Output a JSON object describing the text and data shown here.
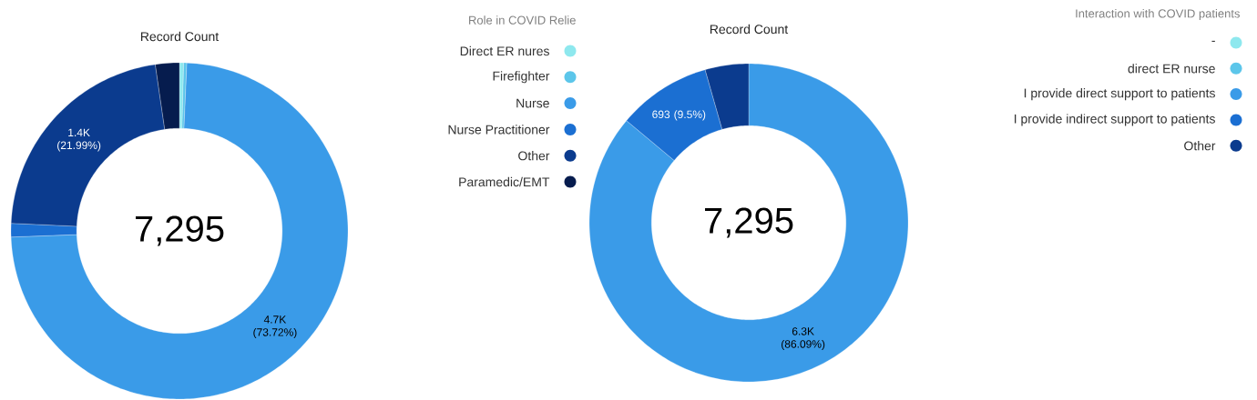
{
  "chart_data": [
    {
      "type": "donut",
      "title": "Record Count",
      "legend_title": "Role in COVID Relie",
      "legend": "right",
      "categories": [
        "Direct ER nures",
        "Firefighter",
        "Nurse",
        "Nurse Practitioner",
        "Other",
        "Paramedic/EMT"
      ],
      "values": [
        0.4,
        0.3,
        73.72,
        1.3,
        21.99,
        2.29
      ],
      "colors": [
        "#8ee8ee",
        "#5cc6ea",
        "#3a9be8",
        "#1b6fd2",
        "#0b3b8e",
        "#061c4e"
      ],
      "value_labels": [
        null,
        null,
        "4.7K (73.72%)",
        null,
        "1.4K (21.99%)",
        null
      ],
      "annotations": [
        "7,295"
      ]
    },
    {
      "type": "donut",
      "title": "Record Count",
      "legend_title": "Interaction with COVID patients",
      "legend": "right",
      "categories": [
        "-",
        "direct ER nurse",
        "I provide direct support to patients",
        "I provide indirect support to patients",
        "Other"
      ],
      "values": [
        null,
        null,
        86.09,
        9.5,
        4.41
      ],
      "colors": [
        "#8ee8ee",
        "#5cc6ea",
        "#3a9be8",
        "#1b6fd2",
        "#0b3b8e"
      ],
      "value_labels": [
        null,
        null,
        "6.3K (86.09%)",
        "693 (9.5%)",
        null
      ],
      "annotations": [
        "7,295"
      ]
    }
  ]
}
